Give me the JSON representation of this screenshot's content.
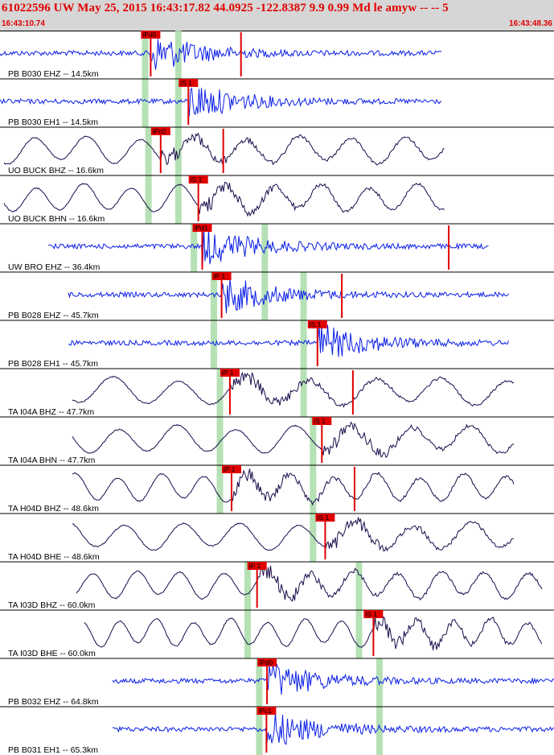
{
  "header": {
    "title": "61022596 UW May 25, 2015 16:43:17.82    44.0925 -122.8387  9.9 0.99 Md le amyw -- --    5",
    "start_time": "16:43:10.74",
    "end_time": "16:43:48.36"
  },
  "colors": {
    "header_bg": "#d6d6d6",
    "title": "#e00000",
    "broadband_trace": "#1a0a4a",
    "short_period_trace": "#0a1ee6",
    "pick": "#e00000",
    "shade": "#a8dca8"
  },
  "chart_data": {
    "type": "line",
    "title": "61022596 UW May 25, 2015 16:43:17.82    44.0925 -122.8387  9.9 0.99 Md le amyw -- --    5",
    "x_range": [
      "16:43:10.74",
      "16:43:48.36"
    ],
    "series": [
      {
        "name": "PB B030 EHZ -- 14.5km",
        "color": "blue",
        "picks": [
          {
            "label": "iPd0",
            "time_frac": 0.272
          },
          {
            "label": "",
            "time_frac": 0.435
          }
        ]
      },
      {
        "name": "PB B030 EH1 -- 14.5km",
        "color": "blue",
        "picks": [
          {
            "label": "iS 1",
            "time_frac": 0.34
          }
        ]
      },
      {
        "name": "UO BUCK BHZ -- 16.6km",
        "color": "dark",
        "picks": [
          {
            "label": "iPc0",
            "time_frac": 0.29
          },
          {
            "label": "",
            "time_frac": 0.403
          }
        ]
      },
      {
        "name": "UO BUCK BHN -- 16.6km",
        "color": "dark",
        "picks": [
          {
            "label": "iS 1",
            "time_frac": 0.358
          }
        ]
      },
      {
        "name": "UW BRO EHZ -- 36.4km",
        "color": "blue",
        "picks": [
          {
            "label": "iPd1",
            "time_frac": 0.365
          },
          {
            "label": "",
            "time_frac": 0.81
          }
        ]
      },
      {
        "name": "PB B028 EHZ -- 45.7km",
        "color": "blue",
        "picks": [
          {
            "label": "iP 1",
            "time_frac": 0.4
          },
          {
            "label": "",
            "time_frac": 0.617
          }
        ]
      },
      {
        "name": "PB B028 EH1 -- 45.7km",
        "color": "blue",
        "picks": [
          {
            "label": "iS 1",
            "time_frac": 0.573
          }
        ]
      },
      {
        "name": "TA I04A BHZ -- 47.7km",
        "color": "dark",
        "picks": [
          {
            "label": "iP 1",
            "time_frac": 0.415
          },
          {
            "label": "",
            "time_frac": 0.637
          }
        ]
      },
      {
        "name": "TA I04A BHN -- 47.7km",
        "color": "dark",
        "picks": [
          {
            "label": "iS 1",
            "time_frac": 0.581
          }
        ]
      },
      {
        "name": "TA H04D BHZ -- 48.6km",
        "color": "dark",
        "picks": [
          {
            "label": "iP 1",
            "time_frac": 0.418
          },
          {
            "label": "",
            "time_frac": 0.64
          }
        ]
      },
      {
        "name": "TA H04D BHE -- 48.6km",
        "color": "dark",
        "picks": [
          {
            "label": "iS 1",
            "time_frac": 0.587
          }
        ]
      },
      {
        "name": "TA I03D BHZ -- 60.0km",
        "color": "dark",
        "picks": [
          {
            "label": "iP 1",
            "time_frac": 0.464
          }
        ]
      },
      {
        "name": "TA I03D BHE -- 60.0km",
        "color": "dark",
        "picks": [
          {
            "label": "iS 1",
            "time_frac": 0.674
          }
        ]
      },
      {
        "name": "PB B032 EHZ -- 64.8km",
        "color": "blue",
        "picks": [
          {
            "label": "iPd0",
            "time_frac": 0.482
          }
        ]
      },
      {
        "name": "PB B031 EH1 -- 65.3km",
        "color": "blue",
        "picks": [
          {
            "label": "iPc1",
            "time_frac": 0.481
          }
        ]
      }
    ],
    "shade_windows": [
      {
        "row_from": 0,
        "row_to": 1,
        "time_frac": 0.262
      },
      {
        "row_from": 0,
        "row_to": 3,
        "time_frac": 0.322
      },
      {
        "row_from": 2,
        "row_to": 3,
        "time_frac": 0.268
      },
      {
        "row_from": 4,
        "row_to": 4,
        "time_frac": 0.35
      },
      {
        "row_from": 4,
        "row_to": 5,
        "time_frac": 0.478
      },
      {
        "row_from": 5,
        "row_to": 6,
        "time_frac": 0.386
      },
      {
        "row_from": 5,
        "row_to": 7,
        "time_frac": 0.548
      },
      {
        "row_from": 7,
        "row_to": 9,
        "time_frac": 0.397
      },
      {
        "row_from": 8,
        "row_to": 10,
        "time_frac": 0.565
      },
      {
        "row_from": 11,
        "row_to": 12,
        "time_frac": 0.447
      },
      {
        "row_from": 11,
        "row_to": 12,
        "time_frac": 0.648
      },
      {
        "row_from": 13,
        "row_to": 14,
        "time_frac": 0.468
      },
      {
        "row_from": 13,
        "row_to": 14,
        "time_frac": 0.685
      }
    ]
  }
}
